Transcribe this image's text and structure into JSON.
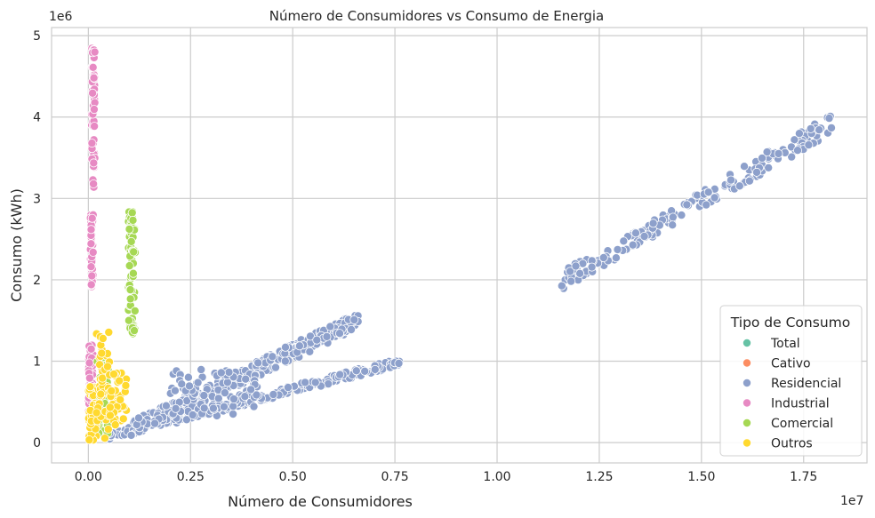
{
  "chart_data": {
    "type": "scatter",
    "title": "Número de Consumidores vs Consumo de Energia",
    "xlabel": "Número de Consumidores",
    "ylabel": "Consumo (kWh)",
    "x_offset_label": "1e7",
    "y_offset_label": "1e6",
    "xlim": [
      -0.09,
      1.905
    ],
    "ylim": [
      -0.25,
      5.1
    ],
    "x_ticks": [
      0.0,
      0.25,
      0.5,
      0.75,
      1.0,
      1.25,
      1.5,
      1.75
    ],
    "x_tick_labels": [
      "0.00",
      "0.25",
      "0.50",
      "0.75",
      "1.00",
      "1.25",
      "1.50",
      "1.75"
    ],
    "y_ticks": [
      0,
      1,
      2,
      3,
      4,
      5
    ],
    "y_tick_labels": [
      "0",
      "1",
      "2",
      "3",
      "4",
      "5"
    ],
    "grid": true,
    "legend": {
      "title": "Tipo de Consumo",
      "placement": "lower-right",
      "entries": [
        "Total",
        "Cativo",
        "Residencial",
        "Industrial",
        "Comercial",
        "Outros"
      ]
    },
    "colors": {
      "Total": "#66c2a5",
      "Cativo": "#fc8d62",
      "Residencial": "#8da0cb",
      "Industrial": "#e78ac3",
      "Comercial": "#a6d854",
      "Outros": "#ffd92f"
    },
    "series": [
      {
        "name": "Residencial",
        "clusters": [
          {
            "x_range": [
              1.155,
              1.82
            ],
            "y_range": [
              1.98,
              3.92
            ],
            "trend": "linear",
            "spread": 0.12,
            "count": 190
          },
          {
            "x_range": [
              0.05,
              0.77
            ],
            "y_range": [
              0.08,
              1.0
            ],
            "trend": "linear",
            "spread": 0.05,
            "count": 260
          },
          {
            "x_range": [
              0.1,
              0.66
            ],
            "y_range": [
              0.15,
              1.5
            ],
            "trend": "linear",
            "spread": 0.1,
            "count": 300
          },
          {
            "x_range": [
              0.2,
              0.42
            ],
            "y_range": [
              0.3,
              0.9
            ],
            "trend": "scatter",
            "spread": 0.1,
            "count": 90
          }
        ]
      },
      {
        "name": "Industrial",
        "clusters": [
          {
            "x_range": [
              0.008,
              0.016
            ],
            "y_range": [
              3.1,
              4.85
            ],
            "trend": "vertical",
            "count": 70
          },
          {
            "x_range": [
              0.005,
              0.012
            ],
            "y_range": [
              1.9,
              2.82
            ],
            "trend": "vertical",
            "count": 45
          },
          {
            "x_range": [
              0.0,
              0.012
            ],
            "y_range": [
              0.3,
              1.2
            ],
            "trend": "vertical",
            "count": 60
          }
        ]
      },
      {
        "name": "Comercial",
        "clusters": [
          {
            "x_range": [
              0.098,
              0.115
            ],
            "y_range": [
              1.28,
              2.84
            ],
            "trend": "vertical",
            "count": 70
          },
          {
            "x_range": [
              0.02,
              0.05
            ],
            "y_range": [
              0.1,
              1.05
            ],
            "trend": "vertical",
            "count": 50
          }
        ]
      },
      {
        "name": "Outros",
        "clusters": [
          {
            "x_range": [
              0.0,
              0.02
            ],
            "y_range": [
              0.02,
              0.72
            ],
            "trend": "vertical",
            "count": 45
          },
          {
            "x_range": [
              0.02,
              0.052
            ],
            "y_range": [
              0.05,
              1.36
            ],
            "trend": "vertical",
            "count": 45
          },
          {
            "x_range": [
              0.05,
              0.095
            ],
            "y_range": [
              0.2,
              0.86
            ],
            "trend": "scatter",
            "count": 35
          }
        ]
      }
    ]
  }
}
